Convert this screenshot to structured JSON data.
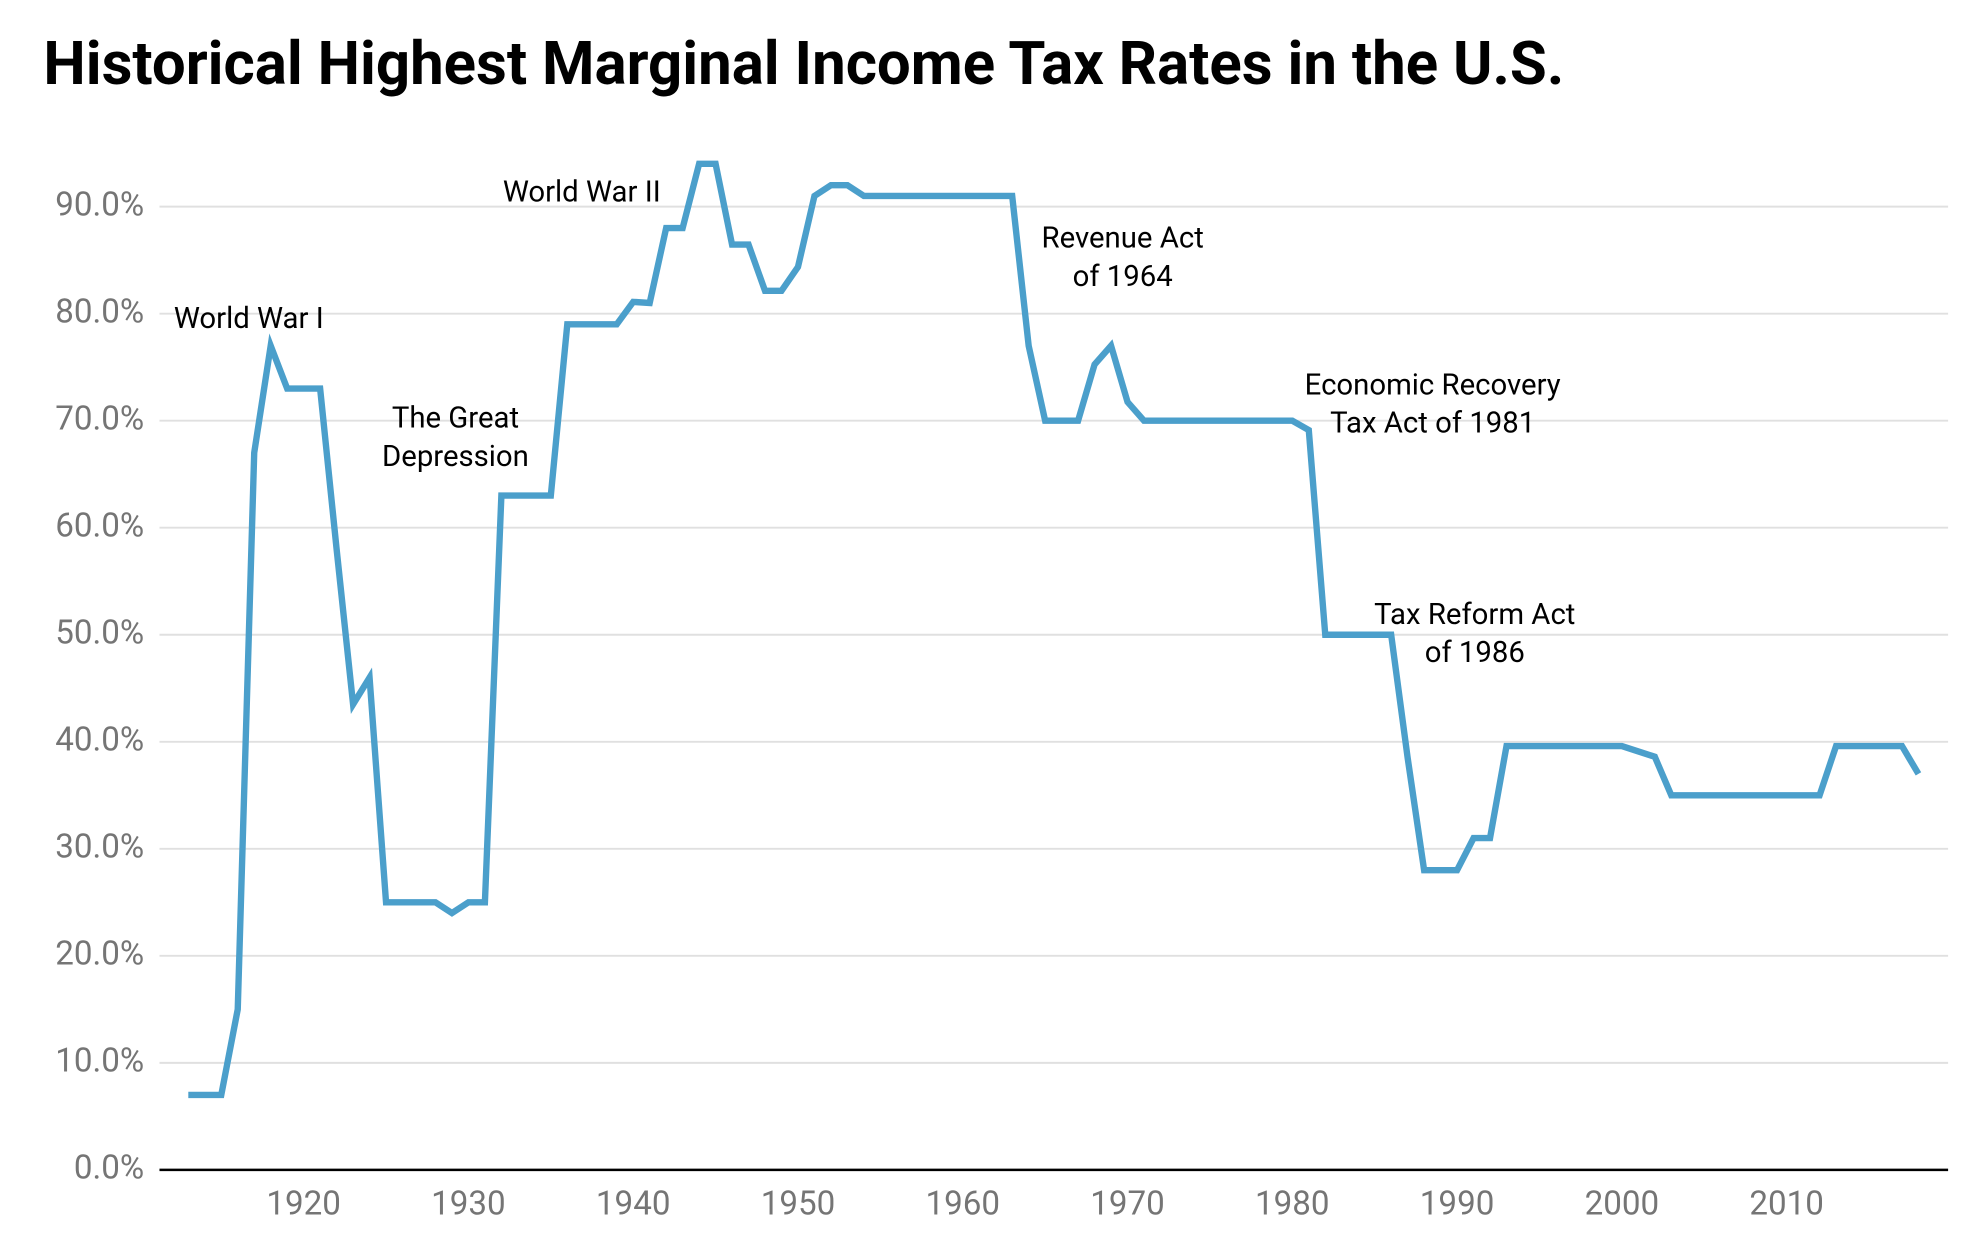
{
  "chart_data": {
    "type": "line",
    "title": "Historical Highest Marginal Income Tax Rates in the U.S.",
    "x": [
      1913,
      1914,
      1915,
      1916,
      1917,
      1918,
      1919,
      1920,
      1921,
      1922,
      1923,
      1924,
      1925,
      1926,
      1927,
      1928,
      1929,
      1930,
      1931,
      1932,
      1933,
      1934,
      1935,
      1936,
      1937,
      1938,
      1939,
      1940,
      1941,
      1942,
      1943,
      1944,
      1945,
      1946,
      1947,
      1948,
      1949,
      1950,
      1951,
      1952,
      1953,
      1954,
      1955,
      1956,
      1957,
      1958,
      1959,
      1960,
      1961,
      1962,
      1963,
      1964,
      1965,
      1966,
      1967,
      1968,
      1969,
      1970,
      1971,
      1972,
      1973,
      1974,
      1975,
      1976,
      1977,
      1978,
      1979,
      1980,
      1981,
      1982,
      1983,
      1984,
      1985,
      1986,
      1987,
      1988,
      1989,
      1990,
      1991,
      1992,
      1993,
      1994,
      1995,
      1996,
      1997,
      1998,
      1999,
      2000,
      2001,
      2002,
      2003,
      2004,
      2005,
      2006,
      2007,
      2008,
      2009,
      2010,
      2011,
      2012,
      2013,
      2014,
      2015,
      2016,
      2017,
      2018
    ],
    "series": [
      {
        "color": "#4b9fcb",
        "values": [
          7,
          7,
          7,
          15,
          67,
          77,
          73,
          73,
          73,
          58,
          43.5,
          46,
          25,
          25,
          25,
          25,
          24,
          25,
          25,
          63,
          63,
          63,
          63,
          79,
          79,
          79,
          79,
          81.1,
          81,
          88,
          88,
          94,
          94,
          86.45,
          86.45,
          82.13,
          82.13,
          84.36,
          91,
          92,
          92,
          91,
          91,
          91,
          91,
          91,
          91,
          91,
          91,
          91,
          91,
          77,
          70,
          70,
          70,
          75.25,
          77,
          71.75,
          70,
          70,
          70,
          70,
          70,
          70,
          70,
          70,
          70,
          70,
          69.125,
          50,
          50,
          50,
          50,
          50,
          38.5,
          28,
          28,
          28,
          31,
          31,
          39.6,
          39.6,
          39.6,
          39.6,
          39.6,
          39.6,
          39.6,
          39.6,
          39.1,
          38.6,
          35,
          35,
          35,
          35,
          35,
          35,
          35,
          35,
          35,
          35,
          39.6,
          39.6,
          39.6,
          39.6,
          39.6,
          37
        ]
      }
    ],
    "xlim": [
      1911.25,
      2019.8
    ],
    "xticks": [
      1920,
      1930,
      1940,
      1950,
      1960,
      1970,
      1980,
      1990,
      2000,
      2010
    ],
    "ylim": [
      0,
      95
    ],
    "yticks": [
      {
        "value": 0,
        "label": "0.0%"
      },
      {
        "value": 10,
        "label": "10.0%"
      },
      {
        "value": 20,
        "label": "20.0%"
      },
      {
        "value": 30,
        "label": "30.0%"
      },
      {
        "value": 40,
        "label": "40.0%"
      },
      {
        "value": 50,
        "label": "50.0%"
      },
      {
        "value": 60,
        "label": "60.0%"
      },
      {
        "value": 70,
        "label": "70.0%"
      },
      {
        "value": 80,
        "label": "80.0%"
      },
      {
        "value": 90,
        "label": "90.0%"
      }
    ],
    "grid": true,
    "annotations": [
      [
        "World War I"
      ],
      [
        "The Great",
        "Depression"
      ],
      [
        "World War II"
      ],
      [
        "Revenue Act",
        "of 1964"
      ],
      [
        "Economic Recovery",
        "Tax Act of 1981"
      ],
      [
        "Tax Reform Act",
        "of 1986"
      ]
    ]
  }
}
